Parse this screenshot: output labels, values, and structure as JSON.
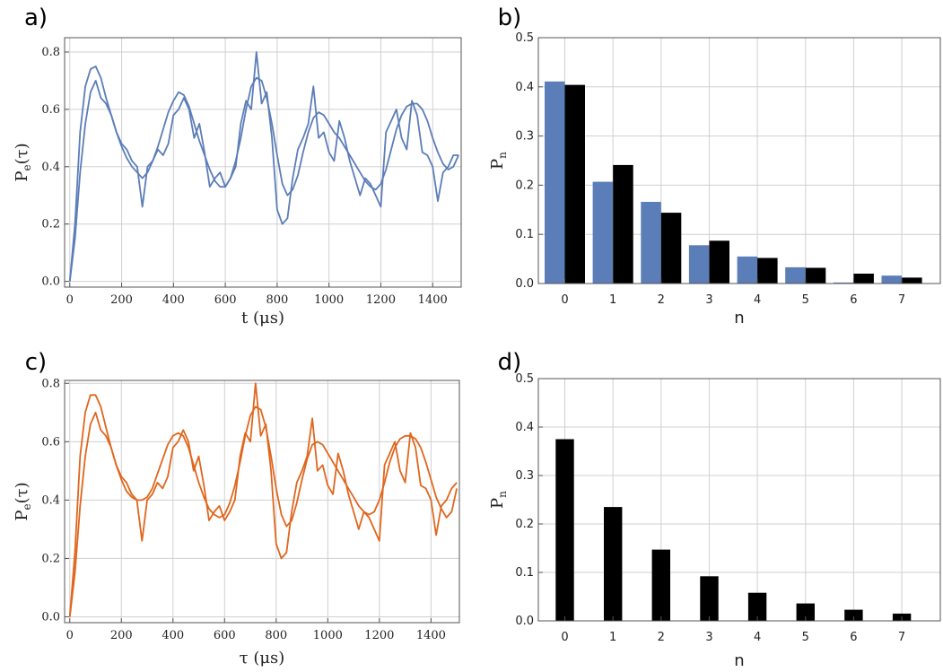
{
  "chart_data": [
    {
      "id": "a",
      "type": "line",
      "panel_label": "a)",
      "xlabel": "t (μs)",
      "ylabel": "P",
      "ylabel_sub": "e",
      "ylabel_tail": "(τ)",
      "xlim": [
        -20,
        1510
      ],
      "ylim": [
        -0.02,
        0.85
      ],
      "xticks": [
        0,
        200,
        400,
        600,
        800,
        1000,
        1200,
        1400
      ],
      "yticks": [
        0.0,
        0.2,
        0.4,
        0.6,
        0.8
      ],
      "ytick_labels": [
        "0.0",
        "0.2",
        "0.4",
        "0.6",
        "0.8"
      ],
      "color": "#5b7db8",
      "grid": true,
      "series": [
        {
          "x": [
            0,
            20,
            40,
            60,
            80,
            100,
            120,
            140,
            160,
            180,
            200,
            220,
            240,
            260,
            280,
            300,
            320,
            340,
            360,
            380,
            400,
            420,
            440,
            460,
            480,
            500,
            520,
            540,
            560,
            580,
            600,
            620,
            640,
            660,
            680,
            700,
            720,
            740,
            760,
            780,
            800,
            820,
            840,
            860,
            880,
            900,
            920,
            940,
            960,
            980,
            1000,
            1020,
            1040,
            1060,
            1080,
            1100,
            1120,
            1140,
            1160,
            1180,
            1200,
            1220,
            1240,
            1260,
            1280,
            1300,
            1320,
            1340,
            1360,
            1380,
            1400,
            1420,
            1440,
            1460,
            1480,
            1500
          ],
          "y": [
            0.0,
            0.15,
            0.38,
            0.55,
            0.66,
            0.7,
            0.64,
            0.62,
            0.58,
            0.52,
            0.48,
            0.46,
            0.42,
            0.4,
            0.26,
            0.4,
            0.42,
            0.46,
            0.44,
            0.48,
            0.58,
            0.6,
            0.64,
            0.6,
            0.5,
            0.55,
            0.45,
            0.33,
            0.36,
            0.38,
            0.33,
            0.36,
            0.4,
            0.55,
            0.63,
            0.6,
            0.8,
            0.62,
            0.66,
            0.5,
            0.25,
            0.2,
            0.22,
            0.36,
            0.46,
            0.5,
            0.55,
            0.68,
            0.5,
            0.52,
            0.45,
            0.42,
            0.56,
            0.5,
            0.42,
            0.36,
            0.3,
            0.36,
            0.34,
            0.3,
            0.26,
            0.52,
            0.56,
            0.6,
            0.5,
            0.46,
            0.63,
            0.58,
            0.45,
            0.44,
            0.4,
            0.28,
            0.38,
            0.4,
            0.44,
            0.44
          ]
        },
        {
          "x": [
            0,
            20,
            40,
            60,
            80,
            100,
            120,
            140,
            160,
            180,
            200,
            220,
            240,
            260,
            280,
            300,
            320,
            340,
            360,
            380,
            400,
            420,
            440,
            460,
            480,
            500,
            520,
            540,
            560,
            580,
            600,
            620,
            640,
            660,
            680,
            700,
            720,
            740,
            760,
            780,
            800,
            820,
            840,
            860,
            880,
            900,
            920,
            940,
            960,
            980,
            1000,
            1020,
            1040,
            1060,
            1080,
            1100,
            1120,
            1140,
            1160,
            1180,
            1200,
            1220,
            1240,
            1260,
            1280,
            1300,
            1320,
            1340,
            1360,
            1380,
            1400,
            1420,
            1440,
            1460,
            1480,
            1500
          ],
          "y": [
            0.0,
            0.2,
            0.52,
            0.68,
            0.74,
            0.75,
            0.71,
            0.64,
            0.58,
            0.52,
            0.47,
            0.43,
            0.4,
            0.38,
            0.36,
            0.38,
            0.42,
            0.47,
            0.53,
            0.59,
            0.63,
            0.66,
            0.65,
            0.61,
            0.55,
            0.49,
            0.44,
            0.39,
            0.35,
            0.33,
            0.33,
            0.36,
            0.42,
            0.5,
            0.6,
            0.68,
            0.71,
            0.7,
            0.64,
            0.55,
            0.44,
            0.34,
            0.3,
            0.32,
            0.37,
            0.45,
            0.52,
            0.57,
            0.59,
            0.58,
            0.55,
            0.52,
            0.5,
            0.47,
            0.44,
            0.41,
            0.38,
            0.35,
            0.33,
            0.32,
            0.34,
            0.39,
            0.46,
            0.53,
            0.58,
            0.61,
            0.62,
            0.62,
            0.6,
            0.56,
            0.5,
            0.45,
            0.41,
            0.39,
            0.4,
            0.44
          ]
        }
      ]
    },
    {
      "id": "b",
      "type": "bar",
      "panel_label": "b)",
      "xlabel": "n",
      "ylabel": "P",
      "ylabel_sub": "n",
      "categories": [
        "0",
        "1",
        "2",
        "3",
        "4",
        "5",
        "6",
        "7"
      ],
      "ylim": [
        0,
        0.5
      ],
      "yticks": [
        0.0,
        0.1,
        0.2,
        0.3,
        0.4,
        0.5
      ],
      "ytick_labels": [
        "0.0",
        "0.1",
        "0.2",
        "0.3",
        "0.4",
        "0.5"
      ],
      "grid": true,
      "series": [
        {
          "color": "#5b7db8",
          "values": [
            0.411,
            0.207,
            0.166,
            0.078,
            0.055,
            0.033,
            0.002,
            0.016
          ]
        },
        {
          "color": "#000000",
          "values": [
            0.404,
            0.241,
            0.144,
            0.087,
            0.052,
            0.032,
            0.02,
            0.012
          ]
        }
      ]
    },
    {
      "id": "c",
      "type": "line",
      "panel_label": "c)",
      "xlabel": "τ (μs)",
      "ylabel": "P",
      "ylabel_sub": "e",
      "ylabel_tail": "(τ)",
      "xlim": [
        -20,
        1510
      ],
      "ylim": [
        -0.02,
        0.81
      ],
      "xticks": [
        0,
        200,
        400,
        600,
        800,
        1000,
        1200,
        1400
      ],
      "yticks": [
        0.0,
        0.2,
        0.4,
        0.6,
        0.8
      ],
      "ytick_labels": [
        "0.0",
        "0.2",
        "0.4",
        "0.6",
        "0.8"
      ],
      "color": "#e0661d",
      "grid": true,
      "series": [
        {
          "x": [
            0,
            20,
            40,
            60,
            80,
            100,
            120,
            140,
            160,
            180,
            200,
            220,
            240,
            260,
            280,
            300,
            320,
            340,
            360,
            380,
            400,
            420,
            440,
            460,
            480,
            500,
            520,
            540,
            560,
            580,
            600,
            620,
            640,
            660,
            680,
            700,
            720,
            740,
            760,
            780,
            800,
            820,
            840,
            860,
            880,
            900,
            920,
            940,
            960,
            980,
            1000,
            1020,
            1040,
            1060,
            1080,
            1100,
            1120,
            1140,
            1160,
            1180,
            1200,
            1220,
            1240,
            1260,
            1280,
            1300,
            1320,
            1340,
            1360,
            1380,
            1400,
            1420,
            1440,
            1460,
            1480,
            1500
          ],
          "y": [
            0.0,
            0.15,
            0.38,
            0.55,
            0.66,
            0.7,
            0.64,
            0.62,
            0.58,
            0.52,
            0.48,
            0.46,
            0.42,
            0.4,
            0.26,
            0.4,
            0.42,
            0.46,
            0.44,
            0.48,
            0.58,
            0.6,
            0.64,
            0.6,
            0.5,
            0.55,
            0.45,
            0.33,
            0.36,
            0.38,
            0.33,
            0.36,
            0.4,
            0.55,
            0.63,
            0.6,
            0.8,
            0.62,
            0.66,
            0.5,
            0.25,
            0.2,
            0.22,
            0.36,
            0.46,
            0.5,
            0.55,
            0.68,
            0.5,
            0.52,
            0.45,
            0.42,
            0.56,
            0.5,
            0.42,
            0.36,
            0.3,
            0.36,
            0.34,
            0.3,
            0.26,
            0.52,
            0.56,
            0.6,
            0.5,
            0.46,
            0.63,
            0.58,
            0.45,
            0.44,
            0.4,
            0.28,
            0.38,
            0.4,
            0.44,
            0.46
          ]
        },
        {
          "x": [
            0,
            20,
            40,
            60,
            80,
            100,
            120,
            140,
            160,
            180,
            200,
            220,
            240,
            260,
            280,
            300,
            320,
            340,
            360,
            380,
            400,
            420,
            440,
            460,
            480,
            500,
            520,
            540,
            560,
            580,
            600,
            620,
            640,
            660,
            680,
            700,
            720,
            740,
            760,
            780,
            800,
            820,
            840,
            860,
            880,
            900,
            920,
            940,
            960,
            980,
            1000,
            1020,
            1040,
            1060,
            1080,
            1100,
            1120,
            1140,
            1160,
            1180,
            1200,
            1220,
            1240,
            1260,
            1280,
            1300,
            1320,
            1340,
            1360,
            1380,
            1400,
            1420,
            1440,
            1460,
            1480,
            1500
          ],
          "y": [
            0.0,
            0.22,
            0.55,
            0.7,
            0.76,
            0.76,
            0.72,
            0.65,
            0.58,
            0.52,
            0.47,
            0.43,
            0.41,
            0.4,
            0.4,
            0.41,
            0.44,
            0.49,
            0.54,
            0.59,
            0.62,
            0.63,
            0.62,
            0.58,
            0.52,
            0.46,
            0.41,
            0.37,
            0.35,
            0.34,
            0.35,
            0.39,
            0.45,
            0.53,
            0.62,
            0.69,
            0.72,
            0.71,
            0.65,
            0.55,
            0.44,
            0.35,
            0.31,
            0.33,
            0.39,
            0.47,
            0.54,
            0.59,
            0.6,
            0.59,
            0.56,
            0.53,
            0.5,
            0.47,
            0.44,
            0.41,
            0.38,
            0.36,
            0.35,
            0.36,
            0.4,
            0.46,
            0.53,
            0.58,
            0.61,
            0.62,
            0.62,
            0.61,
            0.58,
            0.53,
            0.47,
            0.41,
            0.37,
            0.34,
            0.36,
            0.44
          ]
        }
      ]
    },
    {
      "id": "d",
      "type": "bar",
      "panel_label": "d)",
      "xlabel": "n",
      "ylabel": "P",
      "ylabel_sub": "n",
      "categories": [
        "0",
        "1",
        "2",
        "3",
        "4",
        "5",
        "6",
        "7"
      ],
      "ylim": [
        0,
        0.5
      ],
      "yticks": [
        0.0,
        0.1,
        0.2,
        0.3,
        0.4,
        0.5
      ],
      "ytick_labels": [
        "0.0",
        "0.1",
        "0.2",
        "0.3",
        "0.4",
        "0.5"
      ],
      "grid": true,
      "series": [
        {
          "color": "#000000",
          "values": [
            0.375,
            0.235,
            0.147,
            0.092,
            0.058,
            0.036,
            0.023,
            0.015
          ]
        }
      ]
    }
  ]
}
